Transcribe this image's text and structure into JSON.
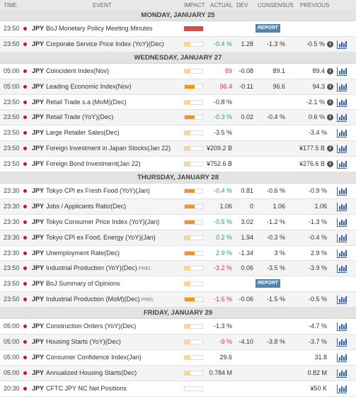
{
  "header": {
    "time": "TIME",
    "event": "EVENT",
    "impact": "IMPACT",
    "actual": "ACTUAL",
    "dev": "DEV",
    "consensus": "CONSENSUS",
    "previous": "PREVIOUS"
  },
  "colors": {
    "impact_fill": "#f7941d",
    "impact_light": "#fbd68a",
    "impact_high": "#d94a40",
    "report": "#4b86b6",
    "chart_icon": "#3a5ea8"
  },
  "days": [
    {
      "label": "MONDAY, JANUARY 25",
      "rows": [
        {
          "time": "23:50",
          "ccy": "JPY",
          "event": "BoJ Monetary Policy Meeting Minutes",
          "impact": "high",
          "report": "REPORT"
        },
        {
          "time": "23:50",
          "ccy": "JPY",
          "event": "Corporate Service Price Index (YoY)(Dec)",
          "impact": "low",
          "actual": "-0.4 %",
          "actual_color": "grn",
          "dev": "1.28",
          "consensus": "-1.3 %",
          "previous": "-0.5 %",
          "info": true,
          "chart": true
        }
      ]
    },
    {
      "label": "WEDNESDAY, JANUARY 27",
      "rows": [
        {
          "time": "05:00",
          "ccy": "JPY",
          "event": "Coincident Index(Nov)",
          "impact": "low",
          "actual": "89",
          "actual_color": "red",
          "dev": "-0.08",
          "consensus": "89.1",
          "previous": "89.4",
          "info": true,
          "chart": true
        },
        {
          "time": "05:00",
          "ccy": "JPY",
          "event": "Leading Economic Index(Nov)",
          "impact": "med",
          "actual": "96.4",
          "actual_color": "red",
          "dev": "-0.11",
          "consensus": "96.6",
          "previous": "94.3",
          "info": true,
          "chart": true
        },
        {
          "time": "23:50",
          "ccy": "JPY",
          "event": "Retail Trade s.a (MoM)(Dec)",
          "impact": "low",
          "actual": "-0.8 %",
          "previous": "-2.1 %",
          "info": true,
          "chart": true
        },
        {
          "time": "23:50",
          "ccy": "JPY",
          "event": "Retail Trade (YoY)(Dec)",
          "impact": "med",
          "actual": "-0.3 %",
          "actual_color": "grn",
          "dev": "0.02",
          "consensus": "-0.4 %",
          "previous": "0.6 %",
          "info": true,
          "chart": true
        },
        {
          "time": "23:50",
          "ccy": "JPY",
          "event": "Large Retailer Sales(Dec)",
          "impact": "low",
          "actual": "-3.5 %",
          "previous": "-3.4 %",
          "chart": true
        },
        {
          "time": "23:50",
          "ccy": "JPY",
          "event": "Foreign Investment in Japan Stocks(Jan 22)",
          "impact": "low",
          "actual": "¥209.2 B",
          "previous": "¥177.5 B",
          "info": true,
          "chart": true
        },
        {
          "time": "23:50",
          "ccy": "JPY",
          "event": "Foreign Bond Investment(Jan 22)",
          "impact": "low",
          "actual": "¥752.6 B",
          "previous": "¥276.6 B",
          "info": true,
          "chart": true
        }
      ]
    },
    {
      "label": "THURSDAY, JANUARY 28",
      "rows": [
        {
          "time": "23:30",
          "ccy": "JPY",
          "event": "Tokyo CPI ex Fresh Food (YoY)(Jan)",
          "impact": "med",
          "actual": "-0.4 %",
          "actual_color": "grn",
          "dev": "0.81",
          "consensus": "-0.6 %",
          "previous": "-0.9 %",
          "chart": true
        },
        {
          "time": "23:30",
          "ccy": "JPY",
          "event": "Jobs / Applicants Ratio(Dec)",
          "impact": "med",
          "actual": "1.06",
          "dev": "0",
          "consensus": "1.06",
          "previous": "1.06",
          "chart": true
        },
        {
          "time": "23:30",
          "ccy": "JPY",
          "event": "Tokyo Consumer Price Index (YoY)(Jan)",
          "impact": "med",
          "actual": "-0.5 %",
          "actual_color": "grn",
          "dev": "3.02",
          "consensus": "-1.2 %",
          "previous": "-1.3 %",
          "chart": true
        },
        {
          "time": "23:30",
          "ccy": "JPY",
          "event": "Tokyo CPI ex Food, Energy (YoY)(Jan)",
          "impact": "low",
          "actual": "0.2 %",
          "actual_color": "grn",
          "dev": "1.94",
          "consensus": "-0.3 %",
          "previous": "-0.4 %",
          "chart": true
        },
        {
          "time": "23:30",
          "ccy": "JPY",
          "event": "Unemployment Rate(Dec)",
          "impact": "med",
          "actual": "2.9 %",
          "actual_color": "grn",
          "dev": "-1.34",
          "consensus": "3 %",
          "previous": "2.9 %",
          "chart": true
        },
        {
          "time": "23:50",
          "ccy": "JPY",
          "event": "Industrial Production (YoY)(Dec)",
          "prel": "PREL",
          "impact": "low",
          "actual": "-3.2 %",
          "actual_color": "red",
          "dev": "0.06",
          "consensus": "-3.5 %",
          "previous": "-3.9 %",
          "chart": true
        },
        {
          "time": "23:50",
          "ccy": "JPY",
          "event": "BoJ Summary of Opinions",
          "impact": "low",
          "report": "REPORT"
        },
        {
          "time": "23:50",
          "ccy": "JPY",
          "event": "Industrial Production (MoM)(Dec)",
          "prel": "PREL",
          "impact": "med",
          "actual": "-1.6 %",
          "actual_color": "red",
          "dev": "-0.06",
          "consensus": "-1.5 %",
          "previous": "-0.5 %",
          "chart": true
        }
      ]
    },
    {
      "label": "FRIDAY, JANUARY 29",
      "rows": [
        {
          "time": "05:00",
          "ccy": "JPY",
          "event": "Construction Orders (YoY)(Dec)",
          "impact": "low",
          "actual": "-1.3 %",
          "previous": "-4.7 %",
          "chart": true
        },
        {
          "time": "05:00",
          "ccy": "JPY",
          "event": "Housing Starts (YoY)(Dec)",
          "impact": "low",
          "actual": "-9 %",
          "actual_color": "red",
          "dev": "-4.10",
          "consensus": "-3.8 %",
          "previous": "-3.7 %",
          "chart": true
        },
        {
          "time": "05:00",
          "ccy": "JPY",
          "event": "Consumer Confidence Index(Jan)",
          "impact": "low",
          "actual": "29.6",
          "previous": "31.8",
          "chart": true
        },
        {
          "time": "05:00",
          "ccy": "JPY",
          "event": "Annualized Housing Starts(Dec)",
          "impact": "low",
          "actual": "0.784 M",
          "previous": "0.82 M",
          "chart": true
        },
        {
          "time": "20:30",
          "ccy": "JPY",
          "event": "CFTC JPY NC Net Positions",
          "impact": "none",
          "previous": "¥50 K",
          "chart": true
        }
      ]
    }
  ]
}
